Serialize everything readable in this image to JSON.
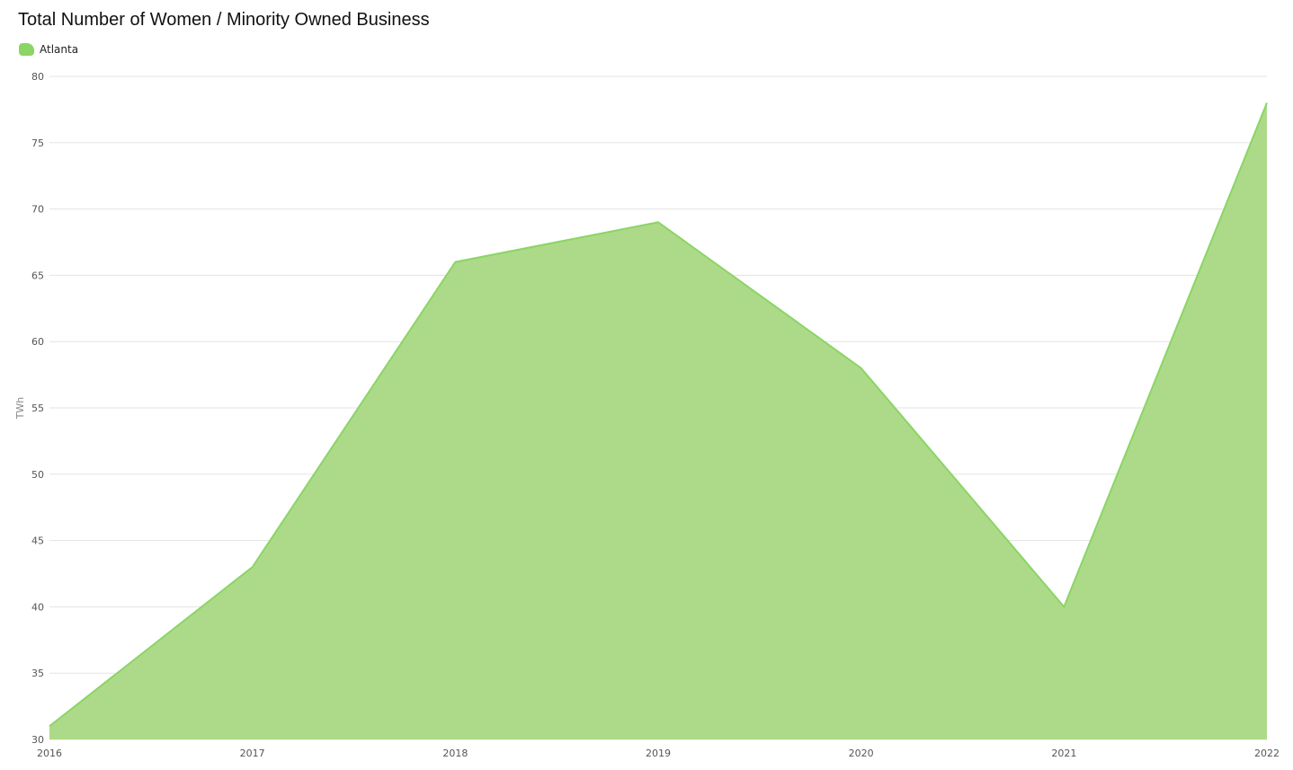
{
  "chart_data": {
    "type": "area",
    "title": "Total Number of Women / Minority Owned Business",
    "xlabel": "",
    "ylabel": "TWh",
    "x": [
      "2016",
      "2017",
      "2018",
      "2019",
      "2020",
      "2021",
      "2022"
    ],
    "series": [
      {
        "name": "Atlanta",
        "values": [
          31,
          43,
          66,
          69,
          58,
          40,
          78
        ]
      }
    ],
    "ylim": [
      30,
      80
    ],
    "yticks": [
      "30",
      "35",
      "40",
      "45",
      "50",
      "55",
      "60",
      "65",
      "70",
      "75",
      "80"
    ],
    "grid": true,
    "legend_position": "top-left"
  },
  "colors": {
    "series_fill": "#adda88",
    "series_line": "#8ad565",
    "legend_swatch": "#8ad565",
    "grid": "#e3e3e3"
  }
}
